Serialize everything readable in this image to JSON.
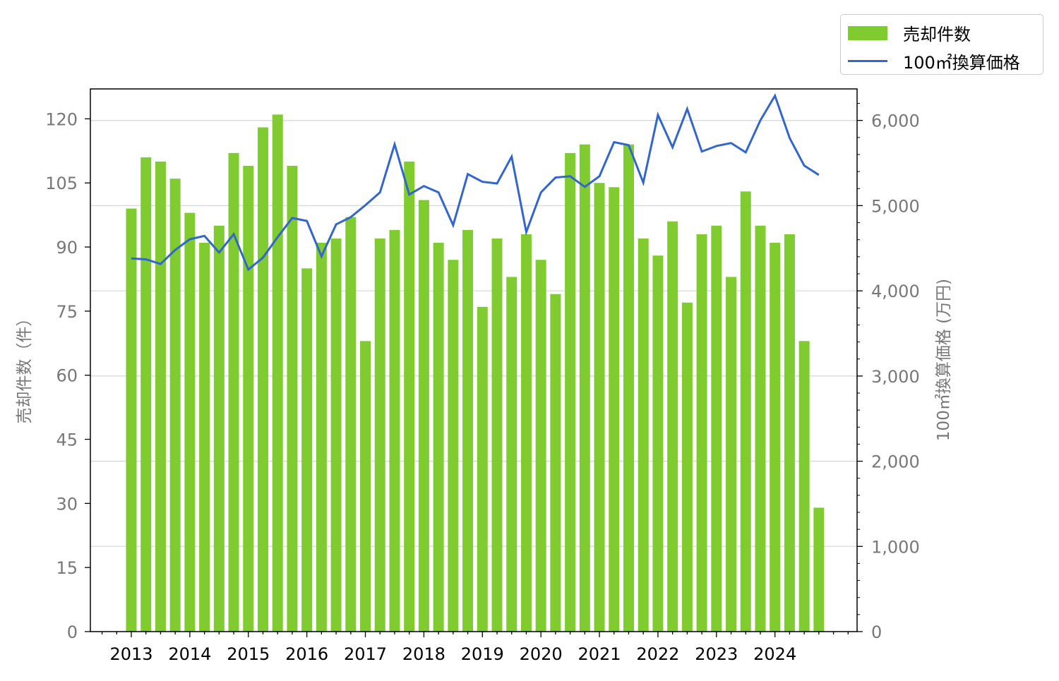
{
  "chart_data": {
    "type": "bar+line",
    "x_ticks": [
      "2013",
      "2014",
      "2015",
      "2016",
      "2017",
      "2018",
      "2019",
      "2020",
      "2021",
      "2022",
      "2023",
      "2024"
    ],
    "ylabel": "売却件数（件）",
    "y2label": "100㎡換算価格 (万円)",
    "yticks": [
      "0",
      "15",
      "30",
      "45",
      "60",
      "75",
      "90",
      "105",
      "120"
    ],
    "y2ticks": [
      "0",
      "1,000",
      "2,000",
      "3,000",
      "4,000",
      "5,000",
      "6,000"
    ],
    "ylim": [
      0,
      127
    ],
    "y2lim": [
      0,
      6370
    ],
    "legend_position": "top-right-outside",
    "series": [
      {
        "name": "売却件数",
        "type": "bar",
        "color": "#80cc30",
        "values": [
          99,
          111,
          110,
          106,
          98,
          91,
          95,
          112,
          109,
          118,
          121,
          109,
          85,
          91,
          92,
          97,
          68,
          92,
          94,
          110,
          101,
          91,
          87,
          94,
          76,
          92,
          83,
          93,
          87,
          79,
          112,
          114,
          105,
          104,
          114,
          92,
          88,
          96,
          77,
          93,
          95,
          83,
          103,
          95,
          91,
          93,
          68,
          29
        ]
      },
      {
        "name": "100㎡換算価格",
        "type": "line",
        "color": "#3366cc",
        "values": [
          4380,
          4370,
          4315,
          4480,
          4605,
          4645,
          4450,
          4665,
          4250,
          4390,
          4630,
          4855,
          4820,
          4405,
          4780,
          4865,
          5005,
          5155,
          5720,
          5130,
          5230,
          5155,
          4770,
          5370,
          5280,
          5260,
          5575,
          4690,
          5155,
          5330,
          5345,
          5220,
          5345,
          5745,
          5710,
          5270,
          6065,
          5685,
          6135,
          5635,
          5700,
          5735,
          5625,
          6000,
          6290,
          5795,
          5470,
          5360
        ]
      }
    ]
  }
}
